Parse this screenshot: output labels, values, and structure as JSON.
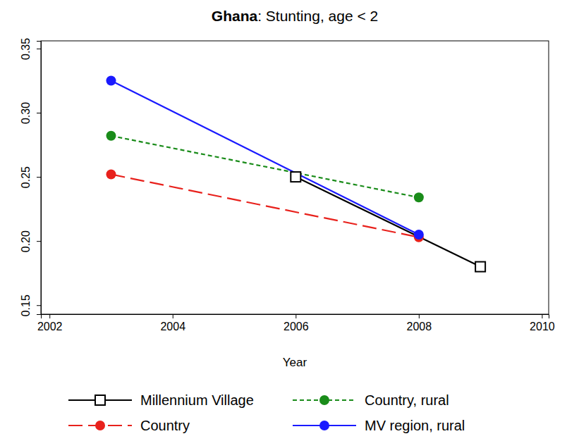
{
  "chart_data": {
    "type": "line",
    "title": "Ghana: Stunting, age < 2",
    "x_label": "Year",
    "xlim": [
      2001.86,
      2010.11
    ],
    "xticks": [
      2002,
      2004,
      2006,
      2008,
      2010
    ],
    "ylim": [
      0.143,
      0.356
    ],
    "yticks": [
      {
        "value": 0.15,
        "label": "0.15"
      },
      {
        "value": 0.2,
        "label": "0.20"
      },
      {
        "value": 0.25,
        "label": "0.25"
      },
      {
        "value": 0.3,
        "label": "0.30"
      },
      {
        "value": 0.35,
        "label": "0.35"
      }
    ],
    "grid": false,
    "legend": "bottom",
    "series": [
      {
        "name": "Millennium Village",
        "color": "#000000",
        "marker": "square",
        "line_style": "solid",
        "x": [
          2006,
          2009
        ],
        "values": [
          0.25,
          0.18
        ]
      },
      {
        "name": "Country",
        "color": "#e8211c",
        "marker": "circle",
        "line_style": "long_dash",
        "x": [
          2003,
          2008
        ],
        "values": [
          0.252,
          0.203
        ]
      },
      {
        "name": "Country, rural",
        "color": "#1a8c1a",
        "marker": "circle",
        "line_style": "dashed",
        "x": [
          2003,
          2008
        ],
        "values": [
          0.282,
          0.234
        ]
      },
      {
        "name": "MV region, rural",
        "color": "#1a1aff",
        "marker": "circle",
        "line_style": "solid",
        "x": [
          2003,
          2008
        ],
        "values": [
          0.325,
          0.205
        ]
      }
    ]
  }
}
